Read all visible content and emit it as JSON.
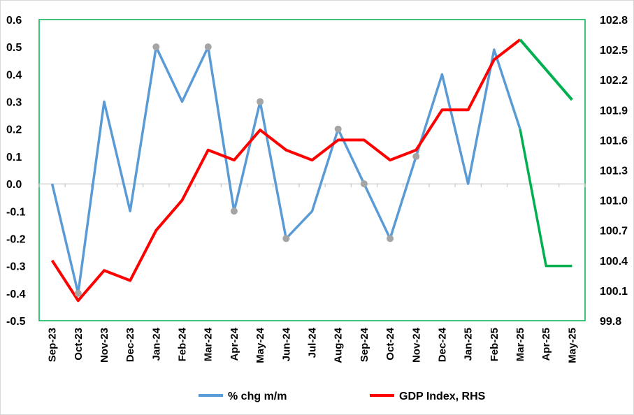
{
  "chart_data": {
    "type": "line",
    "categories": [
      "Sep-23",
      "Oct-23",
      "Nov-23",
      "Dec-23",
      "Jan-24",
      "Feb-24",
      "Mar-24",
      "Apr-24",
      "May-24",
      "Jun-24",
      "Jul-24",
      "Aug-24",
      "Sep-24",
      "Oct-24",
      "Nov-24",
      "Dec-24",
      "Jan-25",
      "Feb-25",
      "Mar-25",
      "Apr-25",
      "May-25"
    ],
    "y_left": {
      "ylim": [
        -0.5,
        0.6
      ],
      "ticks": [
        "0.6",
        "0.5",
        "0.4",
        "0.3",
        "0.2",
        "0.1",
        "0.0",
        "-0.1",
        "-0.2",
        "-0.3",
        "-0.4",
        "-0.5"
      ]
    },
    "y_right": {
      "ylim": [
        99.8,
        102.8
      ],
      "ticks": [
        "102.8",
        "102.5",
        "102.2",
        "101.9",
        "101.6",
        "101.3",
        "101.0",
        "100.7",
        "100.4",
        "100.1",
        "99.8"
      ]
    },
    "series": [
      {
        "name": "% chg m/m",
        "axis": "left",
        "color": "#5b9bd5",
        "values": [
          0.0,
          -0.4,
          0.3,
          -0.1,
          0.5,
          0.3,
          0.5,
          -0.1,
          0.3,
          -0.2,
          -0.1,
          0.2,
          0.0,
          -0.2,
          0.1,
          0.4,
          0.0,
          0.49,
          0.2,
          -0.3,
          -0.3
        ],
        "marked_points": [
          1,
          4,
          6,
          7,
          8,
          9,
          11,
          12,
          13,
          14
        ],
        "marker_color": "#a5a5a5",
        "forecast_from": 19,
        "forecast_color": "#00b050"
      },
      {
        "name": "GDP Index, RHS",
        "axis": "right",
        "color": "#ff0000",
        "values": [
          100.4,
          100.0,
          100.3,
          100.2,
          100.7,
          101.0,
          101.5,
          101.4,
          101.7,
          101.5,
          101.4,
          101.6,
          101.6,
          101.4,
          101.5,
          101.9,
          101.9,
          102.4,
          102.6,
          102.3,
          102.0
        ],
        "forecast_from": 19,
        "forecast_color": "#00b050"
      }
    ],
    "grid": false,
    "legend": "bottom",
    "plot_border_color": "#00b050"
  }
}
